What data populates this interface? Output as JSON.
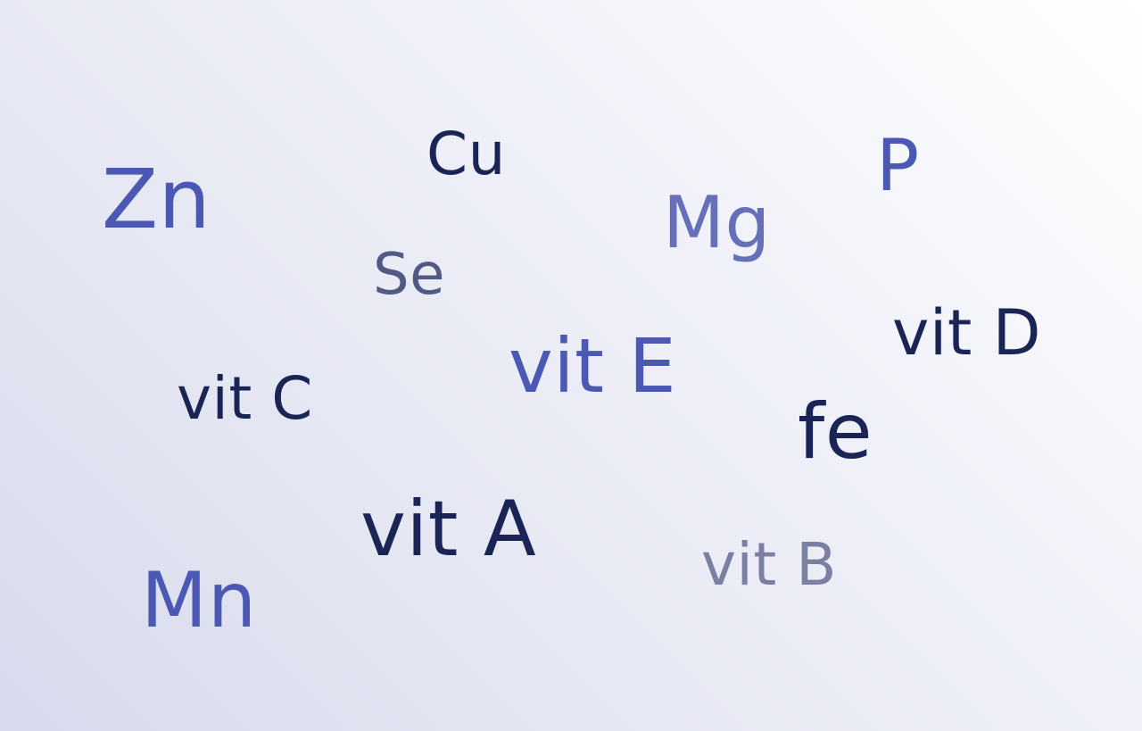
{
  "colors": {
    "navy": "#1a2556",
    "blue": "#4b58b4",
    "soft_blue": "#6670b9",
    "slate": "#525a84",
    "gray_blue": "#7b80a3",
    "background_light": "#ffffff",
    "background_dark": "#d7daed"
  },
  "words": {
    "zn": "Zn",
    "cu": "Cu",
    "p": "P",
    "mg": "Mg",
    "se": "Se",
    "vit_d": "vit D",
    "vit_e": "vit E",
    "vit_c": "vit C",
    "fe": "fe",
    "vit_a": "vit A",
    "vit_b": "vit B",
    "mn": "Mn"
  },
  "word_colors": {
    "zn": "#4b58b4",
    "cu": "#1a2556",
    "p": "#4b58b4",
    "mg": "#6670b9",
    "se": "#525a84",
    "vit_d": "#1a2556",
    "vit_e": "#4b58b4",
    "vit_c": "#1a2556",
    "fe": "#1a2556",
    "vit_a": "#1a2556",
    "vit_b": "#7b80a3",
    "mn": "#4b58b4"
  }
}
